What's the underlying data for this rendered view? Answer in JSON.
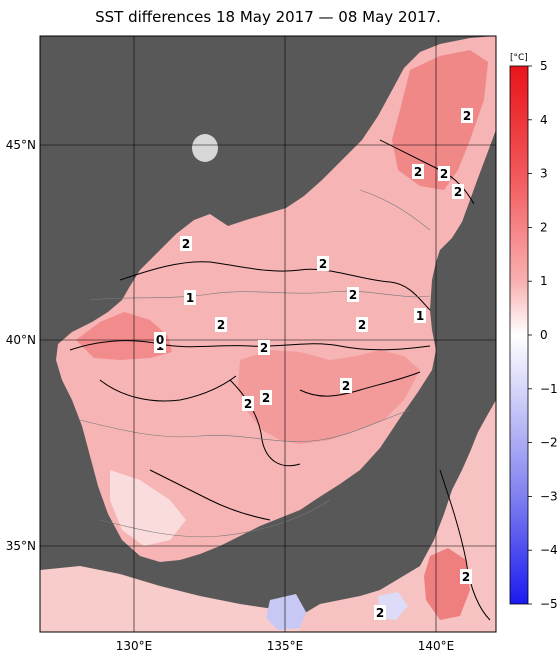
{
  "title": "SST differences 18 May 2017 — 08 May 2017.",
  "axes": {
    "lat_labels": [
      "45°N",
      "40°N",
      "35°N"
    ],
    "lon_labels": [
      "130°E",
      "135°E",
      "140°E"
    ]
  },
  "colorbar": {
    "unit": "[°C]",
    "ticks": [
      "5",
      "4",
      "3",
      "2",
      "1",
      "0",
      "−1",
      "−2",
      "−3",
      "−4",
      "−5"
    ]
  },
  "annotations": [
    {
      "text": "2",
      "name": "contour-label-a"
    },
    {
      "text": "2",
      "name": "contour-label-b"
    },
    {
      "text": "2",
      "name": "contour-label-c"
    },
    {
      "text": "2",
      "name": "contour-label-d"
    },
    {
      "text": "2",
      "name": "contour-label-e"
    },
    {
      "text": "2",
      "name": "contour-label-f"
    },
    {
      "text": "2",
      "name": "contour-label-g"
    },
    {
      "text": "1",
      "name": "contour-label-h"
    },
    {
      "text": "2",
      "name": "contour-label-i"
    },
    {
      "text": "2",
      "name": "contour-label-j"
    },
    {
      "text": "2",
      "name": "contour-label-k"
    },
    {
      "text": "1",
      "name": "contour-label-l"
    },
    {
      "text": "1",
      "name": "contour-label-m"
    },
    {
      "text": "2",
      "name": "contour-label-n"
    },
    {
      "text": "2",
      "name": "contour-label-o"
    },
    {
      "text": "2",
      "name": "contour-label-p"
    },
    {
      "text": "2",
      "name": "contour-label-q"
    },
    {
      "text": "2",
      "name": "contour-label-r"
    },
    {
      "text": "0",
      "name": "contour-label-s"
    }
  ]
}
